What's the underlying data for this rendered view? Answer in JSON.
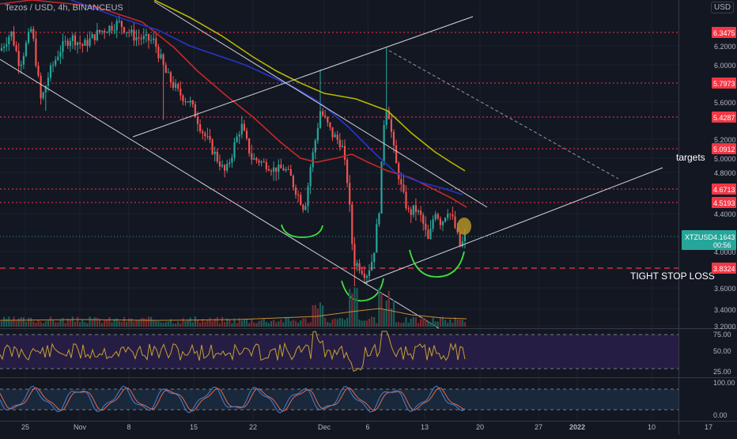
{
  "header": {
    "symbol_line": "Tezos / USD, 4h, BINANCEUS",
    "currency_button": "USD"
  },
  "colors": {
    "background": "#131722",
    "up": "#26a69a",
    "down": "#ef5350",
    "level_line": "#f23645",
    "ma_red": "#c62828",
    "ma_blue": "#2436c9",
    "ma_yellow": "#b5b800",
    "trendline": "#d1d4dc",
    "annotation_green": "#3ee03e",
    "rsi_line": "#c8a030",
    "rsi_band": "#2a1e4a",
    "stoch_k": "#4a7fd8",
    "stoch_d": "#e8694a"
  },
  "chart_data": [
    {
      "type": "candlestick",
      "symbol": "XTZUSD",
      "price_axis": {
        "ticks": [
          "6.2000",
          "6.0000",
          "5.6000",
          "5.2000",
          "5.0000",
          "4.8000",
          "4.4000",
          "4.0000",
          "3.6000",
          "3.4000",
          "3.2000"
        ],
        "range": [
          3.2,
          6.5
        ]
      },
      "time_axis": {
        "ticks": [
          "25",
          "Nov",
          "8",
          "15",
          "22",
          "Dec",
          "6",
          "13",
          "20",
          "27",
          "2022",
          "10",
          "17"
        ]
      },
      "current_price": {
        "value": "4.1643",
        "countdown": "00:56",
        "label": "XTZUSD"
      },
      "levels": [
        {
          "value": 6.3475,
          "label": "6.3475"
        },
        {
          "value": 5.7973,
          "label": "5.7973"
        },
        {
          "value": 5.4287,
          "label": "5.4287"
        },
        {
          "value": 5.0912,
          "label": "5.0912"
        },
        {
          "value": 4.6713,
          "label": "4.6713"
        },
        {
          "value": 4.5193,
          "label": "4.5193"
        },
        {
          "value": 3.8324,
          "label": "3.8324",
          "dashed_long": true
        }
      ],
      "annotations": [
        {
          "text": "targets"
        },
        {
          "text": "TIGHT STOP LOSS"
        }
      ]
    },
    {
      "type": "line",
      "indicator": "RSI",
      "y_ticks": [
        "75.00",
        "50.00",
        "25.00"
      ],
      "range": [
        20,
        85
      ]
    },
    {
      "type": "line",
      "indicator": "Stochastic",
      "y_ticks": [
        "100.00",
        "0.00"
      ],
      "range": [
        0,
        100
      ]
    }
  ]
}
